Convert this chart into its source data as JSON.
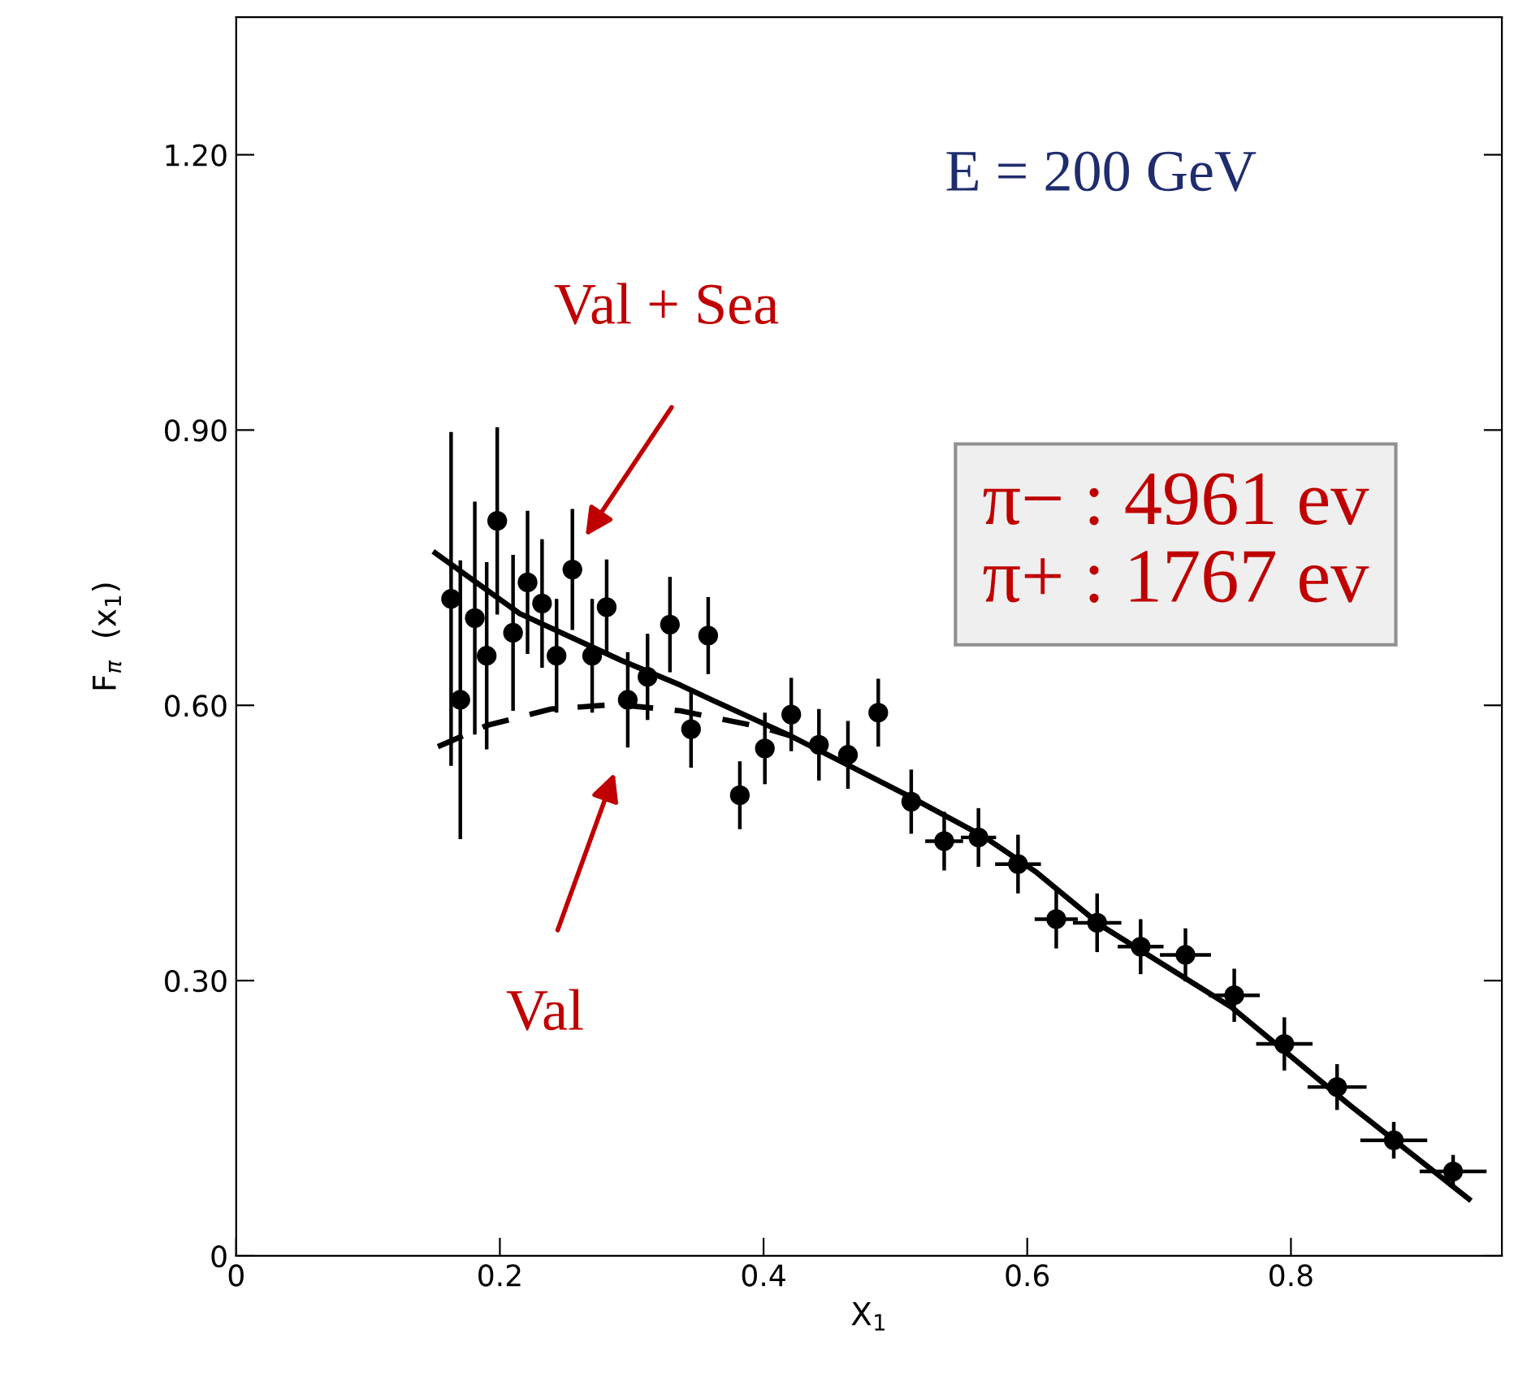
{
  "chart_data": {
    "type": "scatter",
    "xlabel": "X$_{1}$",
    "ylabel": "F$_{π}$  (x$_{1}$)",
    "xlim": [
      0,
      0.96
    ],
    "ylim": [
      0,
      1.35
    ],
    "xticks": [
      0,
      0.2,
      0.4,
      0.6,
      0.8
    ],
    "yticks": [
      0,
      {
        "value": 0.3,
        "label": "0.30"
      },
      {
        "value": 0.6,
        "label": "0.60"
      },
      {
        "value": 0.9,
        "label": "0.90"
      },
      {
        "value": 1.2,
        "label": "1.20"
      }
    ],
    "grid": false,
    "legend": false,
    "series": [
      {
        "color": "#000000",
        "marker": "circle",
        "x": [
          0.163,
          0.17,
          0.181,
          0.19,
          0.198,
          0.21,
          0.221,
          0.232,
          0.243,
          0.255,
          0.27,
          0.281,
          0.297,
          0.312,
          0.329,
          0.345,
          0.358,
          0.382,
          0.401,
          0.421,
          0.442,
          0.464,
          0.487,
          0.512,
          0.537,
          0.563,
          0.593,
          0.622,
          0.653,
          0.686,
          0.72,
          0.757,
          0.795,
          0.835,
          0.878,
          0.923
        ],
        "values": [
          0.716,
          0.606,
          0.695,
          0.654,
          0.801,
          0.679,
          0.734,
          0.711,
          0.654,
          0.748,
          0.654,
          0.707,
          0.606,
          0.631,
          0.688,
          0.574,
          0.676,
          0.502,
          0.553,
          0.59,
          0.557,
          0.546,
          0.592,
          0.495,
          0.452,
          0.456,
          0.427,
          0.367,
          0.363,
          0.337,
          0.328,
          0.284,
          0.231,
          0.184,
          0.126,
          0.092
        ],
        "errors": [
          0.18,
          0.15,
          0.125,
          0.1,
          0.1,
          0.083,
          0.076,
          0.068,
          0.06,
          0.064,
          0.06,
          0.05,
          0.05,
          0.045,
          0.05,
          0.04,
          0.04,
          0.035,
          0.037,
          0.038,
          0.037,
          0.035,
          0.035,
          0.033,
          0.03,
          0.03,
          0.03,
          0.03,
          0.03,
          0.028,
          0.027,
          0.027,
          0.027,
          0.023,
          0.018,
          0.016
        ],
        "xerrors": [
          null,
          null,
          null,
          null,
          null,
          null,
          null,
          null,
          null,
          null,
          null,
          null,
          null,
          null,
          null,
          null,
          null,
          null,
          null,
          null,
          null,
          null,
          null,
          null,
          0.013,
          0.012,
          0.016,
          0.015,
          0.017,
          0.016,
          0.018,
          0.018,
          0.02,
          0.021,
          0.024,
          0.024
        ]
      },
      {
        "type": "line",
        "color": "#000000",
        "line_style": "solid",
        "x": [
          0.151,
          0.215,
          0.292,
          0.337,
          0.362,
          0.42,
          0.509,
          0.567,
          0.607,
          0.656,
          0.755,
          0.844,
          0.935
        ],
        "values": [
          0.766,
          0.7,
          0.649,
          0.622,
          0.605,
          0.567,
          0.502,
          0.457,
          0.418,
          0.36,
          0.271,
          0.165,
          0.062
        ]
      },
      {
        "type": "line",
        "color": "#000000",
        "line_style": "dashed",
        "x": [
          0.153,
          0.19,
          0.239,
          0.288,
          0.337,
          0.399,
          0.42
        ],
        "values": [
          0.555,
          0.578,
          0.596,
          0.601,
          0.594,
          0.576,
          0.567
        ]
      }
    ],
    "annotations": [
      "E = 200 GeV",
      "π− : 4961 ev",
      "π+ : 1767 ev",
      "Val + Sea",
      "Val"
    ]
  }
}
